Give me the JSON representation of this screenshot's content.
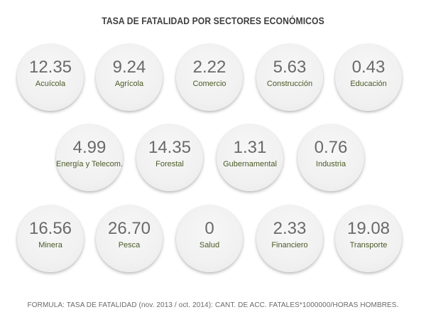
{
  "chart_data": {
    "type": "bubble",
    "title": "TASA DE FATALIDAD POR SECTORES ECONÓMICOS",
    "categories": [
      "Acuícola",
      "Agrícola",
      "Comercio",
      "Construcción",
      "Educación",
      "Energía y Telecom.",
      "Forestal",
      "Gubernamental",
      "Industria",
      "Minera",
      "Pesca",
      "Salud",
      "Financiero",
      "Transporte"
    ],
    "values": [
      12.35,
      9.24,
      2.22,
      5.63,
      0.43,
      4.99,
      14.35,
      1.31,
      0.76,
      16.56,
      26.7,
      0,
      2.33,
      19.08
    ],
    "items": [
      {
        "label": "Acuícola",
        "value": "12.35"
      },
      {
        "label": "Agrícola",
        "value": "9.24"
      },
      {
        "label": "Comercio",
        "value": "2.22"
      },
      {
        "label": "Construcción",
        "value": "5.63"
      },
      {
        "label": "Educación",
        "value": "0.43"
      },
      {
        "label": "Energía y Telecom.",
        "value": "4.99"
      },
      {
        "label": "Forestal",
        "value": "14.35"
      },
      {
        "label": "Gubernamental",
        "value": "1.31"
      },
      {
        "label": "Industria",
        "value": "0.76"
      },
      {
        "label": "Minera",
        "value": "16.56"
      },
      {
        "label": "Pesca",
        "value": "26.70"
      },
      {
        "label": "Salud",
        "value": "0"
      },
      {
        "label": "Financiero",
        "value": "2.33"
      },
      {
        "label": "Transporte",
        "value": "19.08"
      }
    ],
    "footnote": "FORMULA: TASA DE FATALIDAD (nov. 2013 / oct. 2014): CANT. DE ACC. FATALES*1000000/HORAS HOMBRES."
  },
  "colors": {
    "bubble_fill": "#f1f1f1",
    "value_text": "#6a6a6a",
    "label_text": "#4a5a26",
    "title_text": "#3d3d3d"
  }
}
